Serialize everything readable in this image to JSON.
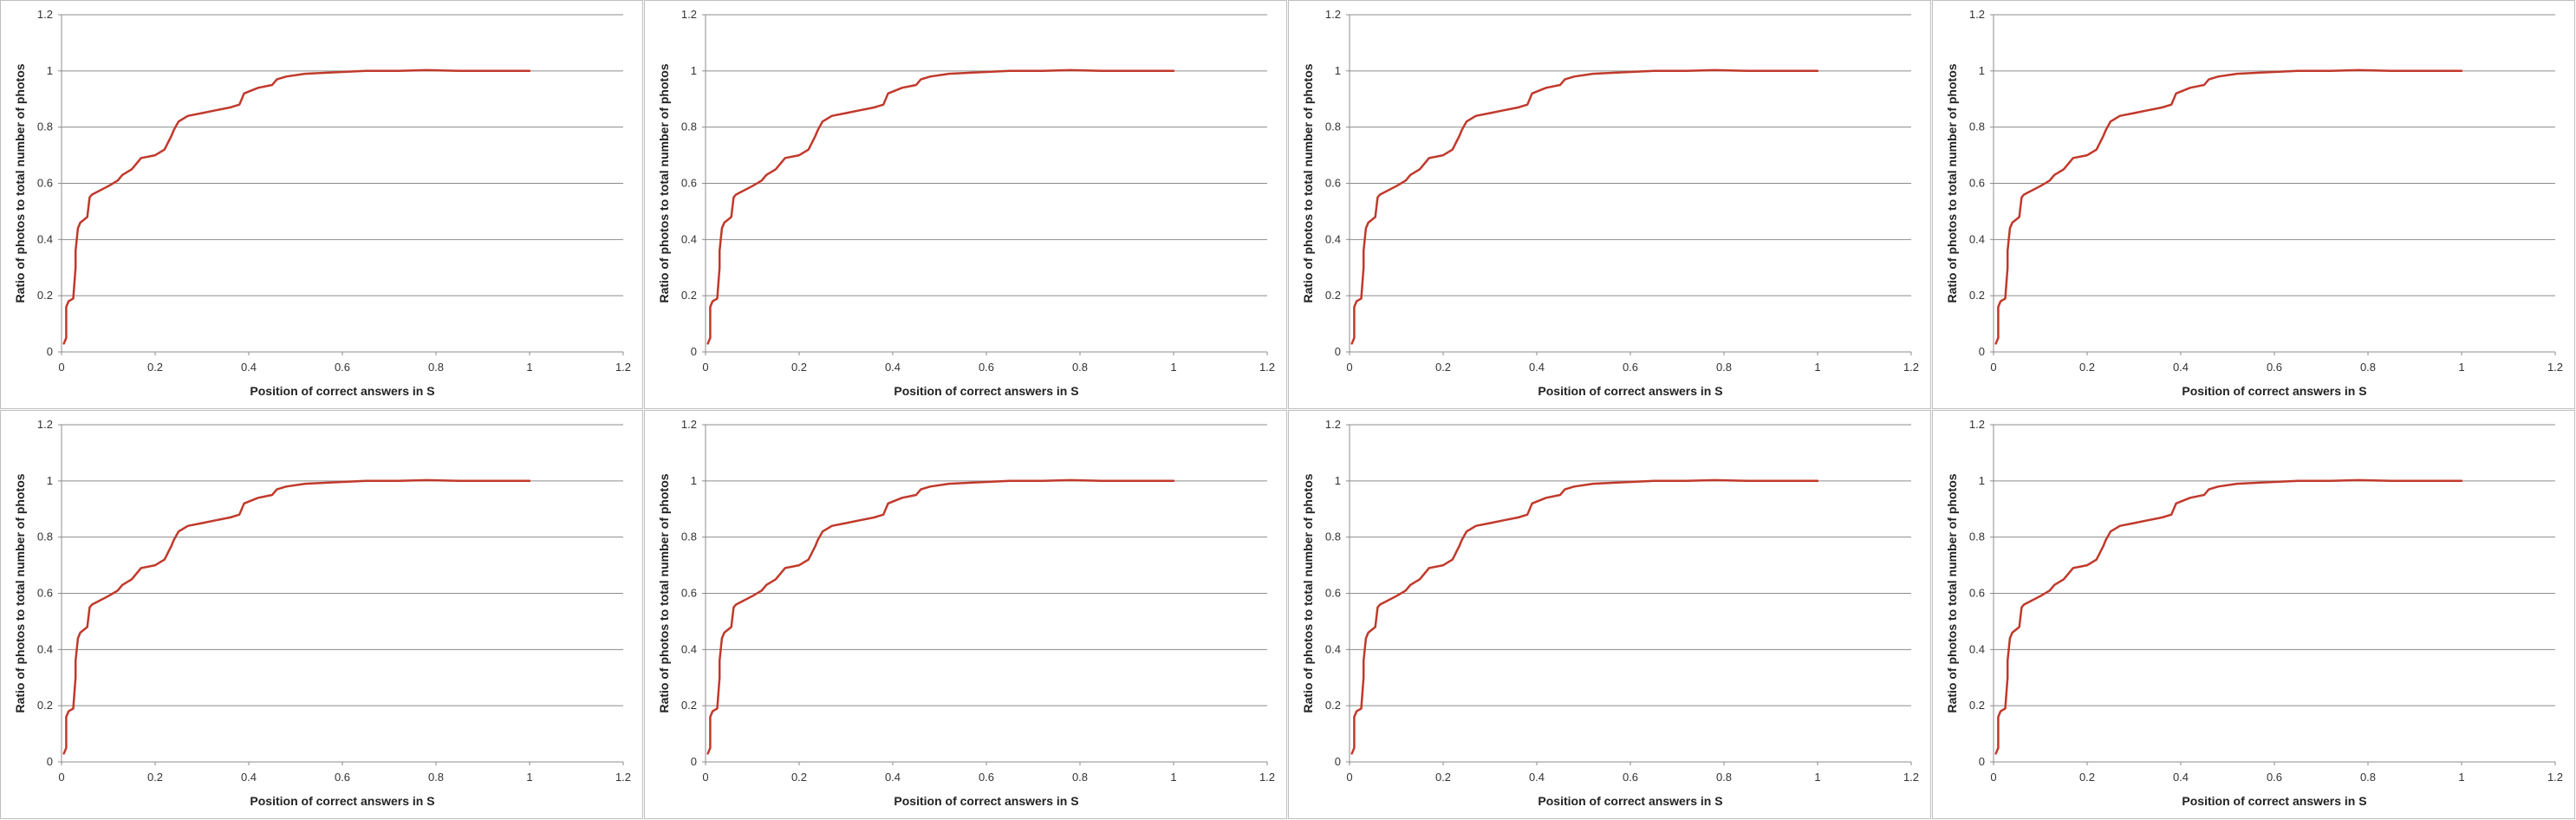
{
  "chart_data": [
    {
      "type": "line",
      "xlabel": "Position of correct answers in S",
      "ylabel": "Ratio of photos to total number of photos",
      "xlim": [
        0,
        1.2
      ],
      "ylim": [
        0,
        1.2
      ],
      "xticks": [
        "0",
        "0.2",
        "0.4",
        "0.6",
        "0.8",
        "1",
        "1.2"
      ],
      "yticks": [
        "0",
        "0.2",
        "0.4",
        "0.6",
        "0.8",
        "1",
        "1.2"
      ],
      "grid": "horizontal",
      "legend": "none",
      "series": [
        {
          "color": "#c0392b",
          "x": [
            0.005,
            0.01,
            0.01,
            0.015,
            0.025,
            0.03,
            0.03,
            0.035,
            0.04,
            0.055,
            0.06,
            0.065,
            0.1,
            0.12,
            0.13,
            0.15,
            0.16,
            0.17,
            0.2,
            0.22,
            0.235,
            0.24,
            0.25,
            0.27,
            0.3,
            0.33,
            0.36,
            0.38,
            0.39,
            0.42,
            0.45,
            0.46,
            0.48,
            0.52,
            0.58,
            0.65,
            0.72,
            0.78,
            0.85,
            0.92,
            1.0
          ],
          "y": [
            0.03,
            0.05,
            0.16,
            0.18,
            0.19,
            0.3,
            0.36,
            0.44,
            0.46,
            0.48,
            0.55,
            0.56,
            0.59,
            0.61,
            0.63,
            0.65,
            0.67,
            0.69,
            0.7,
            0.72,
            0.77,
            0.79,
            0.82,
            0.84,
            0.85,
            0.86,
            0.87,
            0.88,
            0.92,
            0.94,
            0.95,
            0.97,
            0.98,
            0.99,
            0.995,
            1.0,
            1.0,
            1.003,
            1.0,
            1.0,
            1.0
          ]
        }
      ]
    },
    {
      "type": "line",
      "xlabel": "Position of correct answers in S",
      "ylabel": "Ratio of photos to total number of photos",
      "xlim": [
        0,
        1.2
      ],
      "ylim": [
        0,
        1.2
      ],
      "xticks": [
        "0",
        "0.2",
        "0.4",
        "0.6",
        "0.8",
        "1",
        "1.2"
      ],
      "yticks": [
        "0",
        "0.2",
        "0.4",
        "0.6",
        "0.8",
        "1",
        "1.2"
      ],
      "grid": "horizontal",
      "legend": "none",
      "series": [
        {
          "color": "#c0392b",
          "x": [
            0.005,
            0.01,
            0.01,
            0.015,
            0.025,
            0.03,
            0.03,
            0.035,
            0.04,
            0.055,
            0.06,
            0.065,
            0.1,
            0.12,
            0.13,
            0.15,
            0.16,
            0.17,
            0.2,
            0.22,
            0.235,
            0.24,
            0.25,
            0.27,
            0.3,
            0.33,
            0.36,
            0.38,
            0.39,
            0.42,
            0.45,
            0.46,
            0.48,
            0.52,
            0.58,
            0.65,
            0.72,
            0.78,
            0.85,
            0.92,
            1.0
          ],
          "y": [
            0.03,
            0.05,
            0.16,
            0.18,
            0.19,
            0.3,
            0.36,
            0.44,
            0.46,
            0.48,
            0.55,
            0.56,
            0.59,
            0.61,
            0.63,
            0.65,
            0.67,
            0.69,
            0.7,
            0.72,
            0.77,
            0.79,
            0.82,
            0.84,
            0.85,
            0.86,
            0.87,
            0.88,
            0.92,
            0.94,
            0.95,
            0.97,
            0.98,
            0.99,
            0.995,
            1.0,
            1.0,
            1.003,
            1.0,
            1.0,
            1.0
          ]
        }
      ]
    },
    {
      "type": "line",
      "xlabel": "Position of correct answers in S",
      "ylabel": "Ratio of photos to total number of photos",
      "xlim": [
        0,
        1.2
      ],
      "ylim": [
        0,
        1.2
      ],
      "xticks": [
        "0",
        "0.2",
        "0.4",
        "0.6",
        "0.8",
        "1",
        "1.2"
      ],
      "yticks": [
        "0",
        "0.2",
        "0.4",
        "0.6",
        "0.8",
        "1",
        "1.2"
      ],
      "grid": "horizontal",
      "legend": "none",
      "series": [
        {
          "color": "#c0392b",
          "x": [
            0.005,
            0.01,
            0.01,
            0.015,
            0.025,
            0.03,
            0.03,
            0.035,
            0.04,
            0.055,
            0.06,
            0.065,
            0.1,
            0.12,
            0.13,
            0.15,
            0.16,
            0.17,
            0.2,
            0.22,
            0.235,
            0.24,
            0.25,
            0.27,
            0.3,
            0.33,
            0.36,
            0.38,
            0.39,
            0.42,
            0.45,
            0.46,
            0.48,
            0.52,
            0.58,
            0.65,
            0.72,
            0.78,
            0.85,
            0.92,
            1.0
          ],
          "y": [
            0.03,
            0.05,
            0.16,
            0.18,
            0.19,
            0.3,
            0.36,
            0.44,
            0.46,
            0.48,
            0.55,
            0.56,
            0.59,
            0.61,
            0.63,
            0.65,
            0.67,
            0.69,
            0.7,
            0.72,
            0.77,
            0.79,
            0.82,
            0.84,
            0.85,
            0.86,
            0.87,
            0.88,
            0.92,
            0.94,
            0.95,
            0.97,
            0.98,
            0.99,
            0.995,
            1.0,
            1.0,
            1.003,
            1.0,
            1.0,
            1.0
          ]
        }
      ]
    },
    {
      "type": "line",
      "xlabel": "Position of correct answers in S",
      "ylabel": "Ratio of photos to total number of photos",
      "xlim": [
        0,
        1.2
      ],
      "ylim": [
        0,
        1.2
      ],
      "xticks": [
        "0",
        "0.2",
        "0.4",
        "0.6",
        "0.8",
        "1",
        "1.2"
      ],
      "yticks": [
        "0",
        "0.2",
        "0.4",
        "0.6",
        "0.8",
        "1",
        "1.2"
      ],
      "grid": "horizontal",
      "legend": "none",
      "series": [
        {
          "color": "#c0392b",
          "x": [
            0.005,
            0.01,
            0.01,
            0.015,
            0.025,
            0.03,
            0.03,
            0.035,
            0.04,
            0.055,
            0.06,
            0.065,
            0.1,
            0.12,
            0.13,
            0.15,
            0.16,
            0.17,
            0.2,
            0.22,
            0.235,
            0.24,
            0.25,
            0.27,
            0.3,
            0.33,
            0.36,
            0.38,
            0.39,
            0.42,
            0.45,
            0.46,
            0.48,
            0.52,
            0.58,
            0.65,
            0.72,
            0.78,
            0.85,
            0.92,
            1.0
          ],
          "y": [
            0.03,
            0.05,
            0.16,
            0.18,
            0.19,
            0.3,
            0.36,
            0.44,
            0.46,
            0.48,
            0.55,
            0.56,
            0.59,
            0.61,
            0.63,
            0.65,
            0.67,
            0.69,
            0.7,
            0.72,
            0.77,
            0.79,
            0.82,
            0.84,
            0.85,
            0.86,
            0.87,
            0.88,
            0.92,
            0.94,
            0.95,
            0.97,
            0.98,
            0.99,
            0.995,
            1.0,
            1.0,
            1.003,
            1.0,
            1.0,
            1.0
          ]
        }
      ]
    },
    {
      "type": "line",
      "xlabel": "Position of correct answers in S",
      "ylabel": "Ratio of photos to total number of photos",
      "xlim": [
        0,
        1.2
      ],
      "ylim": [
        0,
        1.2
      ],
      "xticks": [
        "0",
        "0.2",
        "0.4",
        "0.6",
        "0.8",
        "1",
        "1.2"
      ],
      "yticks": [
        "0",
        "0.2",
        "0.4",
        "0.6",
        "0.8",
        "1",
        "1.2"
      ],
      "grid": "horizontal",
      "legend": "none",
      "series": [
        {
          "color": "#c0392b",
          "x": [
            0.005,
            0.01,
            0.01,
            0.015,
            0.025,
            0.03,
            0.03,
            0.035,
            0.04,
            0.055,
            0.06,
            0.065,
            0.1,
            0.12,
            0.13,
            0.15,
            0.16,
            0.17,
            0.2,
            0.22,
            0.235,
            0.24,
            0.25,
            0.27,
            0.3,
            0.33,
            0.36,
            0.38,
            0.39,
            0.42,
            0.45,
            0.46,
            0.48,
            0.52,
            0.58,
            0.65,
            0.72,
            0.78,
            0.85,
            0.92,
            1.0
          ],
          "y": [
            0.03,
            0.05,
            0.16,
            0.18,
            0.19,
            0.3,
            0.36,
            0.44,
            0.46,
            0.48,
            0.55,
            0.56,
            0.59,
            0.61,
            0.63,
            0.65,
            0.67,
            0.69,
            0.7,
            0.72,
            0.77,
            0.79,
            0.82,
            0.84,
            0.85,
            0.86,
            0.87,
            0.88,
            0.92,
            0.94,
            0.95,
            0.97,
            0.98,
            0.99,
            0.995,
            1.0,
            1.0,
            1.003,
            1.0,
            1.0,
            1.0
          ]
        }
      ]
    },
    {
      "type": "line",
      "xlabel": "Position of correct answers in S",
      "ylabel": "Ratio of photos to total number of photos",
      "xlim": [
        0,
        1.2
      ],
      "ylim": [
        0,
        1.2
      ],
      "xticks": [
        "0",
        "0.2",
        "0.4",
        "0.6",
        "0.8",
        "1",
        "1.2"
      ],
      "yticks": [
        "0",
        "0.2",
        "0.4",
        "0.6",
        "0.8",
        "1",
        "1.2"
      ],
      "grid": "horizontal",
      "legend": "none",
      "series": [
        {
          "color": "#c0392b",
          "x": [
            0.005,
            0.01,
            0.01,
            0.015,
            0.025,
            0.03,
            0.03,
            0.035,
            0.04,
            0.055,
            0.06,
            0.065,
            0.1,
            0.12,
            0.13,
            0.15,
            0.16,
            0.17,
            0.2,
            0.22,
            0.235,
            0.24,
            0.25,
            0.27,
            0.3,
            0.33,
            0.36,
            0.38,
            0.39,
            0.42,
            0.45,
            0.46,
            0.48,
            0.52,
            0.58,
            0.65,
            0.72,
            0.78,
            0.85,
            0.92,
            1.0
          ],
          "y": [
            0.03,
            0.05,
            0.16,
            0.18,
            0.19,
            0.3,
            0.36,
            0.44,
            0.46,
            0.48,
            0.55,
            0.56,
            0.59,
            0.61,
            0.63,
            0.65,
            0.67,
            0.69,
            0.7,
            0.72,
            0.77,
            0.79,
            0.82,
            0.84,
            0.85,
            0.86,
            0.87,
            0.88,
            0.92,
            0.94,
            0.95,
            0.97,
            0.98,
            0.99,
            0.995,
            1.0,
            1.0,
            1.003,
            1.0,
            1.0,
            1.0
          ]
        }
      ]
    },
    {
      "type": "line",
      "xlabel": "Position of correct answers in S",
      "ylabel": "Ratio of photos to total number of photos",
      "xlim": [
        0,
        1.2
      ],
      "ylim": [
        0,
        1.2
      ],
      "xticks": [
        "0",
        "0.2",
        "0.4",
        "0.6",
        "0.8",
        "1",
        "1.2"
      ],
      "yticks": [
        "0",
        "0.2",
        "0.4",
        "0.6",
        "0.8",
        "1",
        "1.2"
      ],
      "grid": "horizontal",
      "legend": "none",
      "series": [
        {
          "color": "#c0392b",
          "x": [
            0.005,
            0.01,
            0.01,
            0.015,
            0.025,
            0.03,
            0.03,
            0.035,
            0.04,
            0.055,
            0.06,
            0.065,
            0.1,
            0.12,
            0.13,
            0.15,
            0.16,
            0.17,
            0.2,
            0.22,
            0.235,
            0.24,
            0.25,
            0.27,
            0.3,
            0.33,
            0.36,
            0.38,
            0.39,
            0.42,
            0.45,
            0.46,
            0.48,
            0.52,
            0.58,
            0.65,
            0.72,
            0.78,
            0.85,
            0.92,
            1.0
          ],
          "y": [
            0.03,
            0.05,
            0.16,
            0.18,
            0.19,
            0.3,
            0.36,
            0.44,
            0.46,
            0.48,
            0.55,
            0.56,
            0.59,
            0.61,
            0.63,
            0.65,
            0.67,
            0.69,
            0.7,
            0.72,
            0.77,
            0.79,
            0.82,
            0.84,
            0.85,
            0.86,
            0.87,
            0.88,
            0.92,
            0.94,
            0.95,
            0.97,
            0.98,
            0.99,
            0.995,
            1.0,
            1.0,
            1.003,
            1.0,
            1.0,
            1.0
          ]
        }
      ]
    },
    {
      "type": "line",
      "xlabel": "Position of correct answers in S",
      "ylabel": "Ratio of photos to total number of photos",
      "xlim": [
        0,
        1.2
      ],
      "ylim": [
        0,
        1.2
      ],
      "xticks": [
        "0",
        "0.2",
        "0.4",
        "0.6",
        "0.8",
        "1",
        "1.2"
      ],
      "yticks": [
        "0",
        "0.2",
        "0.4",
        "0.6",
        "0.8",
        "1",
        "1.2"
      ],
      "grid": "horizontal",
      "legend": "none",
      "series": [
        {
          "color": "#c0392b",
          "x": [
            0.005,
            0.01,
            0.01,
            0.015,
            0.025,
            0.03,
            0.03,
            0.035,
            0.04,
            0.055,
            0.06,
            0.065,
            0.1,
            0.12,
            0.13,
            0.15,
            0.16,
            0.17,
            0.2,
            0.22,
            0.235,
            0.24,
            0.25,
            0.27,
            0.3,
            0.33,
            0.36,
            0.38,
            0.39,
            0.42,
            0.45,
            0.46,
            0.48,
            0.52,
            0.58,
            0.65,
            0.72,
            0.78,
            0.85,
            0.92,
            1.0
          ],
          "y": [
            0.03,
            0.05,
            0.16,
            0.18,
            0.19,
            0.3,
            0.36,
            0.44,
            0.46,
            0.48,
            0.55,
            0.56,
            0.59,
            0.61,
            0.63,
            0.65,
            0.67,
            0.69,
            0.7,
            0.72,
            0.77,
            0.79,
            0.82,
            0.84,
            0.85,
            0.86,
            0.87,
            0.88,
            0.92,
            0.94,
            0.95,
            0.97,
            0.98,
            0.99,
            0.995,
            1.0,
            1.0,
            1.003,
            1.0,
            1.0,
            1.0
          ]
        }
      ]
    }
  ]
}
